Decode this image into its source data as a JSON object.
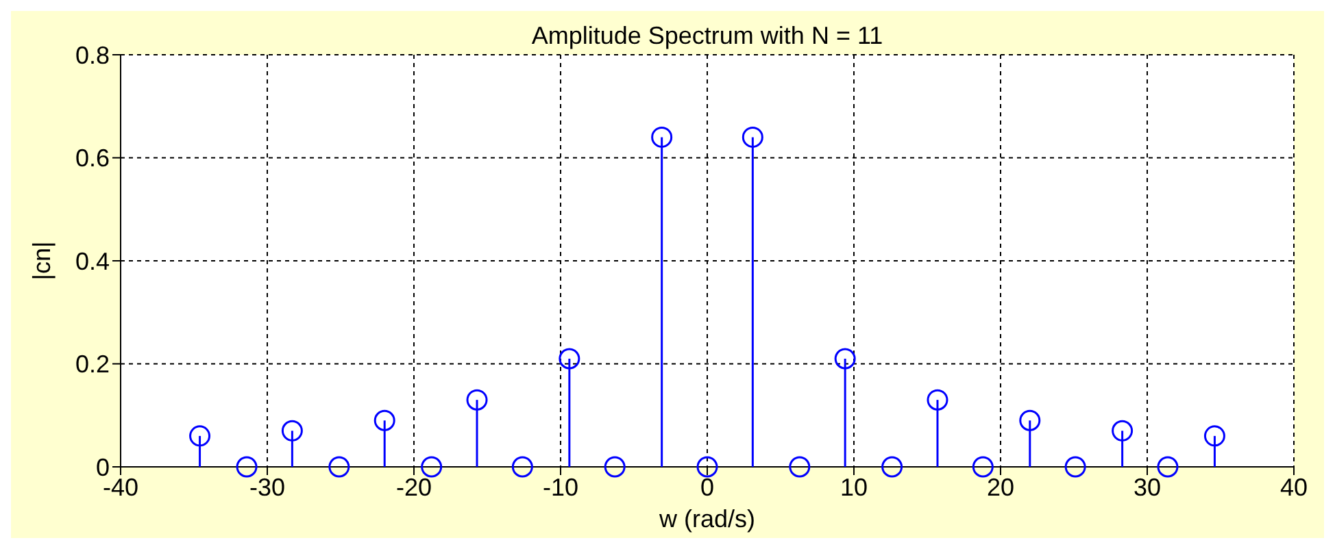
{
  "chart_data": {
    "type": "lollipop",
    "title": "Amplitude Spectrum with N = 11",
    "xlabel": "w (rad/s)",
    "ylabel": "|cn|",
    "x": [
      -34.6,
      -31.4,
      -28.3,
      -25.1,
      -22.0,
      -18.8,
      -15.7,
      -12.6,
      -9.4,
      -6.3,
      -3.1,
      0,
      3.1,
      6.3,
      9.4,
      12.6,
      15.7,
      18.8,
      22.0,
      25.1,
      28.3,
      31.4,
      34.6
    ],
    "series": [
      {
        "color": "#0000ff",
        "values": [
          0.06,
          0,
          0.07,
          0,
          0.09,
          0,
          0.13,
          0,
          0.21,
          0,
          0.64,
          0,
          0.64,
          0,
          0.21,
          0,
          0.13,
          0,
          0.09,
          0,
          0.07,
          0,
          0.06
        ]
      }
    ],
    "xlim": [
      -40,
      40
    ],
    "xticks": [
      -40,
      -30,
      -20,
      -10,
      0,
      10,
      20,
      30,
      40
    ],
    "ylim": [
      0,
      0.8
    ],
    "yticks": [
      0,
      0.2,
      0.4,
      0.6,
      0.8
    ],
    "grid": true,
    "marker": "circle",
    "legend": false
  }
}
